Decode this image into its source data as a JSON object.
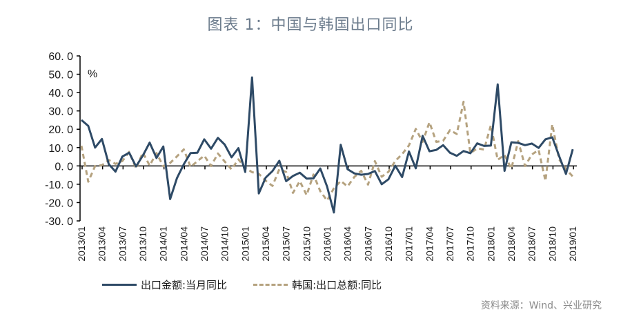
{
  "title": "图表 1：中国与韩国出口同比",
  "source": "资料来源：Wind、兴业研究",
  "unit": "%",
  "legend": {
    "series1": "出口金额:当月同比",
    "series2": "韩国:出口总额:同比"
  },
  "colors": {
    "series1": "#2e4a66",
    "series2": "#b5a27f",
    "title": "#6b7b8c",
    "source": "#8a8a8a"
  },
  "chart_data": {
    "type": "line",
    "title": "图表 1：中国与韩国出口同比",
    "xlabel": "",
    "ylabel": "%",
    "ylim": [
      -30,
      60
    ],
    "yticks": [
      "60.0",
      "50.0",
      "40.0",
      "30.0",
      "20.0",
      "10.0",
      "0.0",
      "-10.0",
      "-20.0",
      "-30.0"
    ],
    "xtick_labels": [
      "2013/01",
      "2013/04",
      "2013/07",
      "2013/10",
      "2014/01",
      "2014/04",
      "2014/07",
      "2014/10",
      "2015/01",
      "2015/04",
      "2015/07",
      "2015/10",
      "2016/01",
      "2016/04",
      "2016/07",
      "2016/10",
      "2017/01",
      "2017/04",
      "2017/07",
      "2017/10",
      "2018/01",
      "2018/04",
      "2018/07",
      "2018/10",
      "2019/01"
    ],
    "grid": false,
    "legend_position": "bottom",
    "x": [
      "2013/01",
      "2013/02",
      "2013/03",
      "2013/04",
      "2013/05",
      "2013/06",
      "2013/07",
      "2013/08",
      "2013/09",
      "2013/10",
      "2013/11",
      "2013/12",
      "2014/01",
      "2014/02",
      "2014/03",
      "2014/04",
      "2014/05",
      "2014/06",
      "2014/07",
      "2014/08",
      "2014/09",
      "2014/10",
      "2014/11",
      "2014/12",
      "2015/01",
      "2015/02",
      "2015/03",
      "2015/04",
      "2015/05",
      "2015/06",
      "2015/07",
      "2015/08",
      "2015/09",
      "2015/10",
      "2015/11",
      "2015/12",
      "2016/01",
      "2016/02",
      "2016/03",
      "2016/04",
      "2016/05",
      "2016/06",
      "2016/07",
      "2016/08",
      "2016/09",
      "2016/10",
      "2016/11",
      "2016/12",
      "2017/01",
      "2017/02",
      "2017/03",
      "2017/04",
      "2017/05",
      "2017/06",
      "2017/07",
      "2017/08",
      "2017/09",
      "2017/10",
      "2017/11",
      "2017/12",
      "2018/01",
      "2018/02",
      "2018/03",
      "2018/04",
      "2018/05",
      "2018/06",
      "2018/07",
      "2018/08",
      "2018/09",
      "2018/10",
      "2018/11",
      "2018/12",
      "2019/01"
    ],
    "series": [
      {
        "name": "出口金额:当月同比",
        "style": "solid",
        "values": [
          25.0,
          21.8,
          10.0,
          14.7,
          1.0,
          -3.1,
          5.1,
          7.2,
          -0.3,
          5.6,
          12.7,
          4.3,
          10.6,
          -18.1,
          -6.6,
          0.9,
          7.0,
          7.2,
          14.5,
          9.4,
          15.3,
          11.6,
          4.7,
          9.7,
          -3.3,
          48.3,
          -15.0,
          -6.4,
          -2.8,
          2.8,
          -8.3,
          -5.5,
          -3.7,
          -6.9,
          -6.8,
          -1.4,
          -11.2,
          -25.4,
          11.5,
          -1.8,
          -4.1,
          -4.8,
          -4.4,
          -2.8,
          -10.0,
          -7.3,
          0.1,
          -6.1,
          7.9,
          -1.3,
          16.4,
          8.0,
          8.7,
          11.3,
          7.2,
          5.5,
          8.1,
          6.9,
          12.3,
          10.9,
          11.1,
          44.5,
          -2.7,
          12.9,
          12.6,
          11.3,
          12.2,
          9.8,
          14.5,
          15.6,
          5.4,
          -4.4,
          9.1
        ]
      },
      {
        "name": "韩国:出口总额:同比",
        "style": "dashed",
        "values": [
          11.0,
          -8.6,
          -0.1,
          0.4,
          3.2,
          1.1,
          2.6,
          7.7,
          -1.5,
          7.3,
          0.2,
          7.0,
          -0.2,
          1.6,
          5.2,
          9.0,
          -0.6,
          2.6,
          5.6,
          -0.1,
          6.8,
          2.4,
          -1.9,
          3.6,
          -1.0,
          -3.4,
          -4.3,
          -8.1,
          -10.9,
          -1.8,
          -3.3,
          -14.7,
          -8.3,
          -15.9,
          -4.7,
          -13.8,
          -18.9,
          -12.2,
          -8.2,
          -11.2,
          -6.0,
          -2.7,
          -10.2,
          2.6,
          -5.9,
          -3.2,
          2.7,
          6.4,
          11.2,
          20.2,
          13.1,
          23.8,
          13.1,
          13.7,
          19.5,
          17.4,
          35.0,
          6.9,
          9.6,
          8.9,
          22.2,
          3.3,
          6.0,
          -1.5,
          13.5,
          -0.1,
          6.2,
          8.7,
          -8.2,
          22.7,
          3.6,
          -1.7,
          -5.8
        ]
      }
    ]
  }
}
